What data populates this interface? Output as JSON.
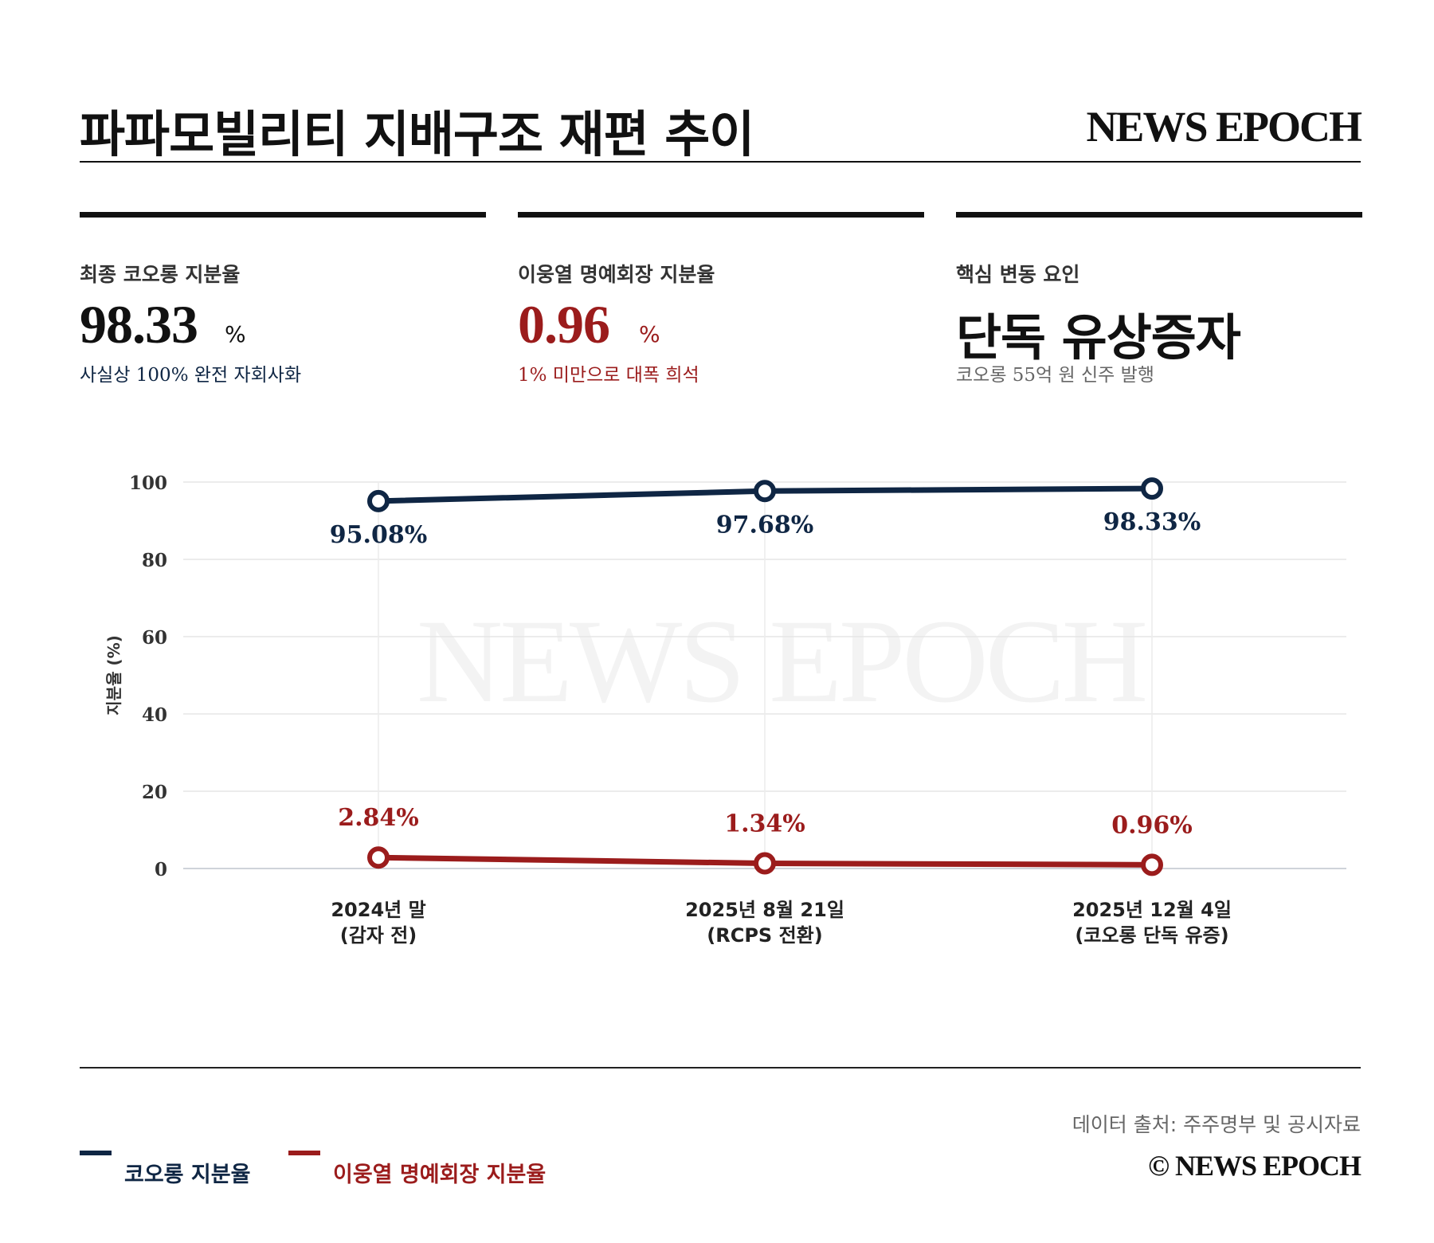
{
  "header": {
    "title": "파파모빌리티 지배구조 재편 추이",
    "brand": "NEWS EPOCH"
  },
  "kpis": [
    {
      "label": "최종 코오롱 지분율",
      "value": "98.33",
      "unit": "%",
      "note": "사실상 100% 완전 자회사화",
      "color": "#0f2644"
    },
    {
      "label": "이웅열 명예회장 지분율",
      "value": "0.96",
      "unit": "%",
      "note": "1% 미만으로 대폭 희석",
      "color": "#9b1c1c"
    },
    {
      "label": "핵심 변동 요인",
      "value": "단독 유상증자",
      "note": "코오롱 55억 원 신주 발행",
      "color": "#111111"
    }
  ],
  "chart_data": {
    "type": "line",
    "categories": [
      [
        "2024년 말",
        "(감자 전)"
      ],
      [
        "2025년 8월 21일",
        "(RCPS 전환)"
      ],
      [
        "2025년 12월 4일",
        "(코오롱 단독 유증)"
      ]
    ],
    "ylabel": "지분율 (%)",
    "ylim": [
      0,
      100
    ],
    "yticks": [
      "0",
      "20",
      "40",
      "60",
      "80",
      "100"
    ],
    "grid": true,
    "watermark": "NEWS EPOCH",
    "series": [
      {
        "name": "코오롱 지분율",
        "values": [
          95.08,
          97.68,
          98.33
        ],
        "labels": [
          "95.08%",
          "97.68%",
          "98.33%"
        ],
        "color": "#0f2644",
        "label_position": "below"
      },
      {
        "name": "이웅열 명예회장 지분율",
        "values": [
          2.84,
          1.34,
          0.96
        ],
        "labels": [
          "2.84%",
          "1.34%",
          "0.96%"
        ],
        "color": "#9b1c1c",
        "label_position": "above"
      }
    ]
  },
  "footer": {
    "source": "데이터 출처: 주주명부 및 공시자료",
    "copyright": "© NEWS EPOCH"
  }
}
